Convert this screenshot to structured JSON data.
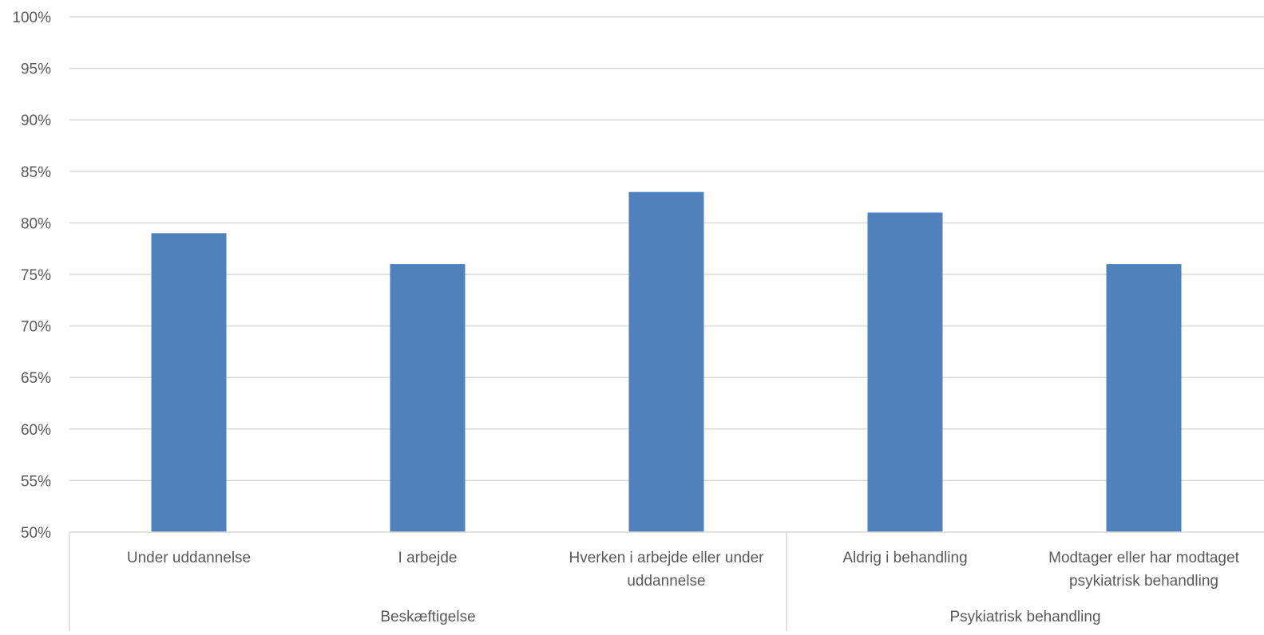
{
  "chart_data": {
    "type": "bar",
    "title": "",
    "xlabel": "",
    "ylabel": "",
    "ylim": [
      50,
      100
    ],
    "y_ticks": [
      "50%",
      "55%",
      "60%",
      "65%",
      "70%",
      "75%",
      "80%",
      "85%",
      "90%",
      "95%",
      "100%"
    ],
    "y_tick_values": [
      50,
      55,
      60,
      65,
      70,
      75,
      80,
      85,
      90,
      95,
      100
    ],
    "grid": true,
    "legend": "none",
    "bar_color": "#4f81bd",
    "categories": [
      {
        "label_lines": [
          "Under uddannelse"
        ],
        "value": 79,
        "group": 0
      },
      {
        "label_lines": [
          "I arbejde"
        ],
        "value": 76,
        "group": 0
      },
      {
        "label_lines": [
          "Hverken i arbejde eller under",
          "uddannelse"
        ],
        "value": 83,
        "group": 0
      },
      {
        "label_lines": [
          "Aldrig i behandling"
        ],
        "value": 81,
        "group": 1
      },
      {
        "label_lines": [
          "Modtager eller har modtaget",
          "psykiatrisk behandling"
        ],
        "value": 76,
        "group": 1
      }
    ],
    "groups": [
      "Beskæftigelse",
      "Psykiatrisk behandling"
    ]
  }
}
